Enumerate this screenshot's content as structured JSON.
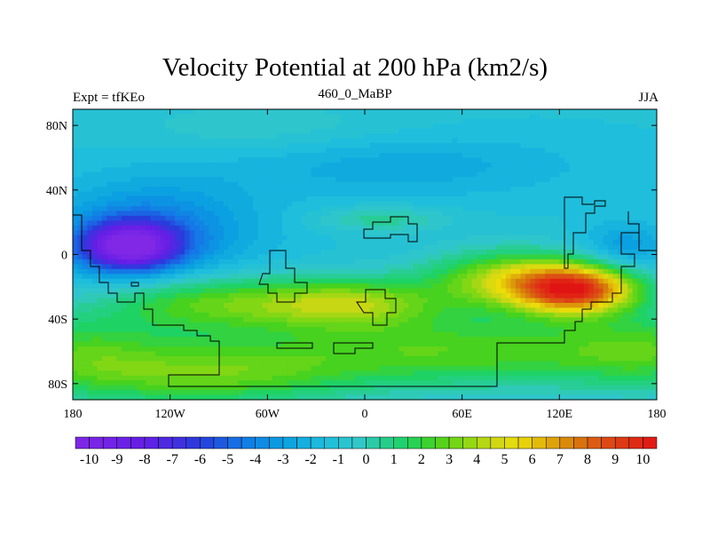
{
  "title": "Velocity Potential at 200 hPa (km2/s)",
  "subtitle_left": "Expt = tfKEo",
  "subtitle_center": "460_0_MaBP",
  "subtitle_right": "JJA",
  "chart_data": {
    "type": "heatmap",
    "xlim": [
      -180,
      180
    ],
    "ylim": [
      -90,
      90
    ],
    "x_ticks": [
      {
        "value": -180,
        "label": "180"
      },
      {
        "value": -120,
        "label": "120W"
      },
      {
        "value": -60,
        "label": "60W"
      },
      {
        "value": 0,
        "label": "0"
      },
      {
        "value": 60,
        "label": "60E"
      },
      {
        "value": 120,
        "label": "120E"
      },
      {
        "value": 180,
        "label": "180"
      }
    ],
    "y_ticks": [
      {
        "value": 80,
        "label": "80N"
      },
      {
        "value": 40,
        "label": "40N"
      },
      {
        "value": 0,
        "label": "0"
      },
      {
        "value": -40,
        "label": "40S"
      },
      {
        "value": -80,
        "label": "80S"
      }
    ],
    "colorbar": {
      "min": -10.5,
      "max": 10.5,
      "step": 0.5,
      "labels": [
        "-10",
        "-9",
        "-8",
        "-7",
        "-6",
        "-5",
        "-4",
        "-3",
        "-2",
        "-1",
        "0",
        "1",
        "2",
        "3",
        "4",
        "5",
        "6",
        "7",
        "8",
        "9",
        "10"
      ]
    },
    "field_features": [
      {
        "lon": -145,
        "lat": 5,
        "value": -9.5,
        "description": "minimum"
      },
      {
        "lon": 135,
        "lat": -25,
        "value": 8,
        "description": "maximum"
      },
      {
        "lon": -40,
        "lat": -30,
        "value": 4.5
      },
      {
        "lon": 10,
        "lat": -35,
        "value": 4
      }
    ]
  }
}
